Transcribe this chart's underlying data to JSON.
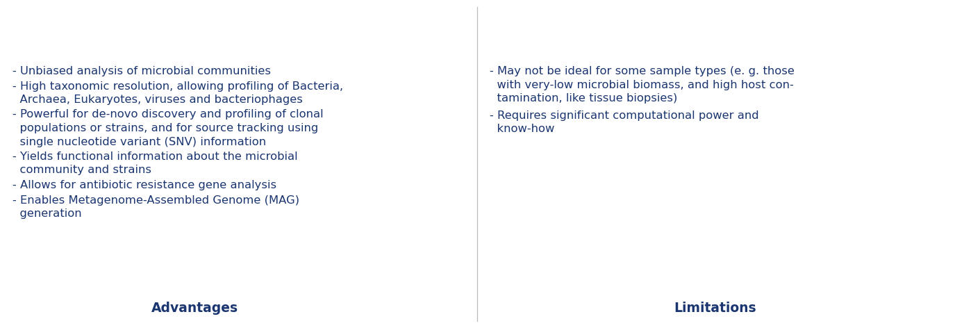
{
  "title_advantages": "Advantages",
  "title_limitations": "Limitations",
  "text_color": "#1a3570",
  "background_color": "#ffffff",
  "divider_color": "#bbbbbb",
  "title_fontsize": 13.5,
  "body_fontsize": 11.8,
  "advantages": [
    [
      "- Unbiased analysis of microbial communities"
    ],
    [
      "- High taxonomic resolution, allowing profiling of Bacteria,",
      "  Archaea, Eukaryotes, viruses and bacteriophages"
    ],
    [
      "- Powerful for de-novo discovery and profiling of clonal",
      "  populations or strains, and for source tracking using",
      "  single nucleotide variant (SNV) information"
    ],
    [
      "- Yields functional information about the microbial",
      "  community and strains"
    ],
    [
      "- Allows for antibiotic resistance gene analysis"
    ],
    [
      "- Enables Metagenome-Assembled Genome (MAG)",
      "  generation"
    ]
  ],
  "limitations": [
    [
      "- May not be ideal for some sample types (e. g. those",
      "  with very-low microbial biomass, and high host con-",
      "  tamination, like tissue biopsies)"
    ],
    [
      "- Requires significant computational power and",
      "  know-how"
    ]
  ]
}
